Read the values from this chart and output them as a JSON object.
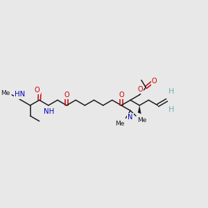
{
  "bg_color": "#e8e8e8",
  "bond_color": "#1a1a1a",
  "O_color": "#cc0000",
  "N_color": "#0000bb",
  "H_color": "#70b0b0",
  "figsize": [
    3.0,
    3.0
  ],
  "dpi": 100,
  "xlim": [
    0,
    300
  ],
  "ylim": [
    0,
    300
  ],
  "bond_lw": 1.1,
  "font_size": 7.0
}
